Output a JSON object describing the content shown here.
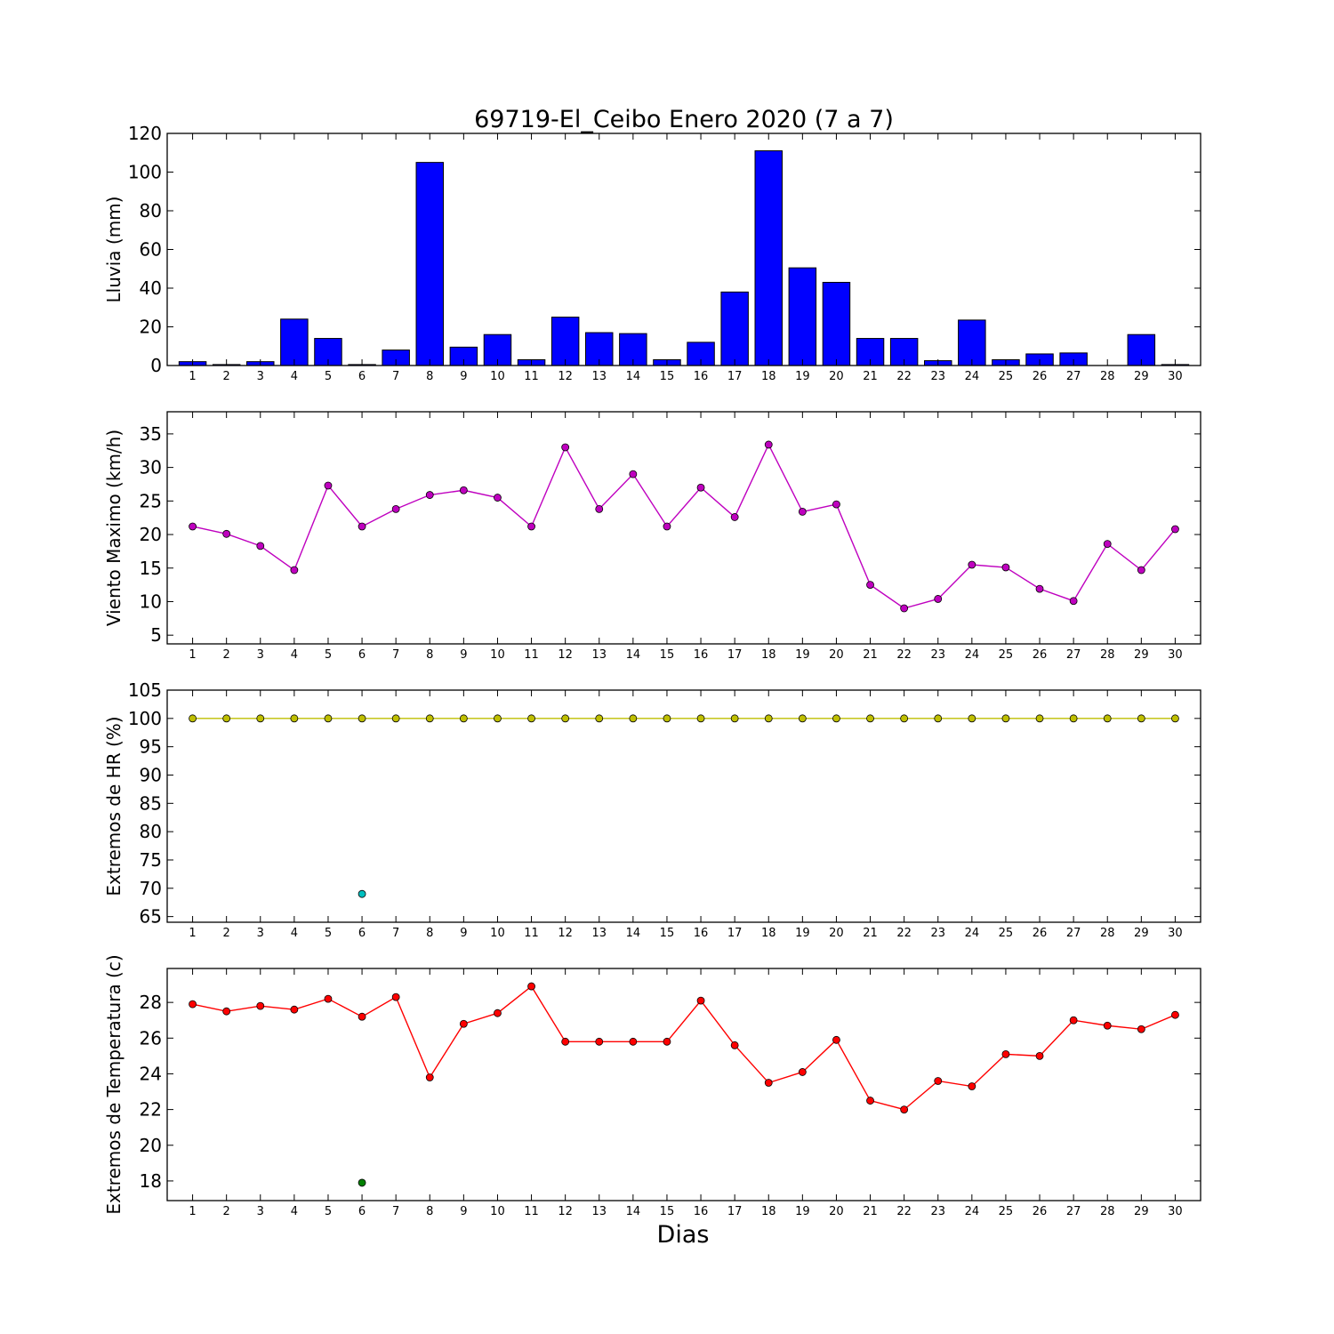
{
  "figure": {
    "title": "69719-El_Ceibo Enero 2020  (7 a 7)",
    "xlabel": "Dias"
  },
  "chart_data": [
    {
      "type": "bar",
      "x": [
        1,
        2,
        3,
        4,
        5,
        6,
        7,
        8,
        9,
        10,
        11,
        12,
        13,
        14,
        15,
        16,
        17,
        18,
        19,
        20,
        21,
        22,
        23,
        24,
        25,
        26,
        27,
        28,
        29,
        30
      ],
      "values": [
        2,
        0.5,
        2,
        24,
        14,
        0.5,
        8,
        105,
        9.5,
        16,
        3,
        25,
        17,
        16.5,
        3,
        12,
        38,
        111,
        50.5,
        43,
        14,
        14,
        2.5,
        23.5,
        3,
        6,
        6.5,
        0,
        16,
        0.5
      ],
      "ylabel": "Lluvia (mm)",
      "ylim": [
        0,
        120
      ],
      "yticks": [
        0,
        20,
        40,
        60,
        80,
        100,
        120
      ],
      "color": "#0000ff"
    },
    {
      "type": "line",
      "x": [
        1,
        2,
        3,
        4,
        5,
        6,
        7,
        8,
        9,
        10,
        11,
        12,
        13,
        14,
        15,
        16,
        17,
        18,
        19,
        20,
        21,
        22,
        23,
        24,
        25,
        26,
        27,
        28,
        29,
        30
      ],
      "values": [
        21.2,
        20.1,
        18.3,
        14.7,
        27.3,
        21.2,
        23.8,
        25.9,
        26.6,
        25.5,
        21.2,
        33,
        23.8,
        29,
        21.2,
        27,
        22.6,
        33.4,
        23.4,
        24.5,
        12.5,
        9,
        10.4,
        15.5,
        15.1,
        11.9,
        10.1,
        18.6,
        14.7,
        20.8
      ],
      "ylabel": "Viento Maximo (km/h)",
      "ylim": [
        3.7,
        38.3
      ],
      "yticks": [
        5,
        10,
        15,
        20,
        25,
        30,
        35
      ],
      "color": "#bf00bf"
    },
    {
      "type": "line",
      "x": [
        1,
        2,
        3,
        4,
        5,
        6,
        7,
        8,
        9,
        10,
        11,
        12,
        13,
        14,
        15,
        16,
        17,
        18,
        19,
        20,
        21,
        22,
        23,
        24,
        25,
        26,
        27,
        28,
        29,
        30
      ],
      "series": [
        {
          "values": [
            100,
            100,
            100,
            100,
            100,
            100,
            100,
            100,
            100,
            100,
            100,
            100,
            100,
            100,
            100,
            100,
            100,
            100,
            100,
            100,
            100,
            100,
            100,
            100,
            100,
            100,
            100,
            100,
            100,
            100
          ],
          "color": "#bfbf00",
          "line": true
        },
        {
          "x": [
            6
          ],
          "values": [
            69
          ],
          "color": "#00bfbf",
          "line": false
        }
      ],
      "ylabel": "Extremos de HR (%)",
      "ylim": [
        64,
        105
      ],
      "yticks": [
        65,
        70,
        75,
        80,
        85,
        90,
        95,
        100,
        105
      ]
    },
    {
      "type": "line",
      "x": [
        1,
        2,
        3,
        4,
        5,
        6,
        7,
        8,
        9,
        10,
        11,
        12,
        13,
        14,
        15,
        16,
        17,
        18,
        19,
        20,
        21,
        22,
        23,
        24,
        25,
        26,
        27,
        28,
        29,
        30
      ],
      "series": [
        {
          "values": [
            27.9,
            27.5,
            27.8,
            27.6,
            28.2,
            27.2,
            28.3,
            23.8,
            26.8,
            27.4,
            28.9,
            25.8,
            25.8,
            25.8,
            25.8,
            28.1,
            25.6,
            23.5,
            24.1,
            25.9,
            22.5,
            22,
            23.6,
            23.3,
            25.1,
            25,
            27,
            26.7,
            26.5,
            27.3
          ],
          "color": "#ff0000",
          "line": true
        },
        {
          "x": [
            6
          ],
          "values": [
            17.9
          ],
          "color": "#008000",
          "line": false
        }
      ],
      "ylabel": "Extremos de Temperatura (c)",
      "ylim": [
        16.9,
        29.9
      ],
      "yticks": [
        18,
        20,
        22,
        24,
        26,
        28
      ]
    }
  ]
}
